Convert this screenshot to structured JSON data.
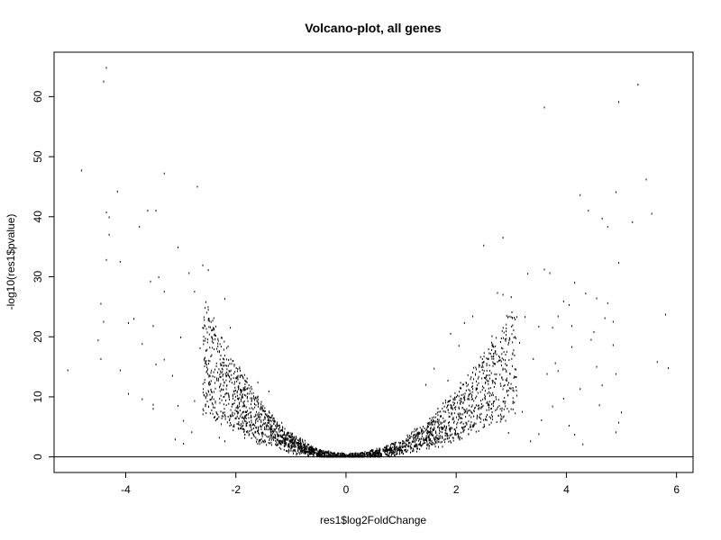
{
  "chart_data": {
    "type": "scatter",
    "title": "Volcano-plot, all genes",
    "xlabel": "res1$log2FoldChange",
    "ylabel": "-log10(res1$pvalue)",
    "xlim": [
      -5.3,
      6.3
    ],
    "ylim": [
      -2.6,
      67.4
    ],
    "xticks": [
      -4,
      -2,
      0,
      2,
      4,
      6
    ],
    "yticks": [
      0,
      10,
      20,
      30,
      40,
      50,
      60
    ],
    "hline": 0,
    "grid": false,
    "legend": "none",
    "point_color": "#000000",
    "points": [
      [
        -4.35,
        64.8
      ],
      [
        -4.4,
        62.5
      ],
      [
        -4.8,
        47.7
      ],
      [
        -3.3,
        47.2
      ],
      [
        -2.7,
        45.0
      ],
      [
        -4.15,
        44.2
      ],
      [
        -3.6,
        41.0
      ],
      [
        -3.45,
        41.0
      ],
      [
        -4.35,
        40.7
      ],
      [
        -4.3,
        39.9
      ],
      [
        -3.75,
        38.3
      ],
      [
        -4.3,
        37.0
      ],
      [
        -3.05,
        34.9
      ],
      [
        -4.35,
        32.8
      ],
      [
        -4.1,
        32.5
      ],
      [
        -2.6,
        31.9
      ],
      [
        -2.5,
        31.1
      ],
      [
        -2.85,
        30.6
      ],
      [
        -3.4,
        29.9
      ],
      [
        -3.55,
        29.2
      ],
      [
        -3.3,
        27.5
      ],
      [
        -2.75,
        27.5
      ],
      [
        -2.2,
        26.3
      ],
      [
        -4.45,
        25.5
      ],
      [
        -2.5,
        24.5
      ],
      [
        -2.4,
        23.1
      ],
      [
        -3.85,
        23.0
      ],
      [
        -3.95,
        22.3
      ],
      [
        -4.4,
        22.5
      ],
      [
        -3.5,
        21.8
      ],
      [
        -2.1,
        21.5
      ],
      [
        -2.6,
        21.5
      ],
      [
        -3.0,
        19.9
      ],
      [
        -4.5,
        19.4
      ],
      [
        -3.7,
        18.8
      ],
      [
        -2.65,
        18.1
      ],
      [
        -2.3,
        17.6
      ],
      [
        -4.45,
        16.3
      ],
      [
        -3.3,
        16.2
      ],
      [
        -3.45,
        15.4
      ],
      [
        -5.05,
        14.4
      ],
      [
        -4.1,
        14.4
      ],
      [
        -3.15,
        13.5
      ],
      [
        -2.0,
        13.1
      ],
      [
        -3.5,
        8.7
      ],
      [
        -3.5,
        8.0
      ],
      [
        -3.7,
        9.6
      ],
      [
        -3.05,
        8.5
      ],
      [
        -2.95,
        6.0
      ],
      [
        -3.1,
        2.9
      ],
      [
        -2.95,
        2.2
      ],
      [
        -2.8,
        4.1
      ],
      [
        -2.3,
        3.2
      ],
      [
        -2.2,
        2.6
      ],
      [
        -3.95,
        10.5
      ],
      [
        -2.75,
        9.3
      ],
      [
        -2.5,
        11.0
      ],
      [
        -1.6,
        12.4
      ],
      [
        -1.4,
        10.9
      ],
      [
        3.6,
        58.2
      ],
      [
        5.3,
        62.0
      ],
      [
        4.95,
        59.1
      ],
      [
        5.45,
        46.2
      ],
      [
        4.9,
        44.1
      ],
      [
        4.25,
        43.6
      ],
      [
        5.55,
        40.5
      ],
      [
        4.4,
        41.0
      ],
      [
        4.65,
        39.7
      ],
      [
        4.75,
        38.3
      ],
      [
        5.2,
        39.1
      ],
      [
        2.85,
        36.5
      ],
      [
        2.5,
        35.2
      ],
      [
        4.95,
        32.3
      ],
      [
        3.6,
        31.2
      ],
      [
        3.7,
        30.6
      ],
      [
        3.3,
        30.5
      ],
      [
        4.15,
        29.0
      ],
      [
        3.95,
        25.9
      ],
      [
        2.75,
        27.3
      ],
      [
        2.85,
        27.0
      ],
      [
        3.0,
        26.6
      ],
      [
        4.35,
        27.2
      ],
      [
        4.55,
        26.4
      ],
      [
        4.75,
        25.6
      ],
      [
        4.05,
        25.3
      ],
      [
        4.7,
        23.1
      ],
      [
        3.85,
        23.4
      ],
      [
        3.25,
        23.3
      ],
      [
        2.3,
        23.4
      ],
      [
        2.15,
        22.3
      ],
      [
        4.85,
        22.5
      ],
      [
        5.8,
        23.7
      ],
      [
        3.5,
        21.7
      ],
      [
        3.75,
        21.5
      ],
      [
        4.1,
        21.8
      ],
      [
        4.5,
        20.8
      ],
      [
        4.1,
        18.3
      ],
      [
        4.85,
        18.6
      ],
      [
        4.45,
        19.5
      ],
      [
        3.15,
        19.0
      ],
      [
        2.65,
        20.1
      ],
      [
        1.9,
        20.5
      ],
      [
        2.05,
        18.5
      ],
      [
        3.4,
        16.3
      ],
      [
        3.8,
        15.6
      ],
      [
        5.65,
        15.8
      ],
      [
        5.85,
        14.8
      ],
      [
        4.55,
        15.0
      ],
      [
        3.85,
        14.3
      ],
      [
        4.9,
        13.8
      ],
      [
        3.65,
        13.8
      ],
      [
        4.65,
        11.9
      ],
      [
        4.25,
        11.3
      ],
      [
        3.75,
        8.4
      ],
      [
        3.95,
        9.7
      ],
      [
        4.6,
        8.6
      ],
      [
        5.0,
        7.4
      ],
      [
        3.55,
        6.1
      ],
      [
        4.05,
        5.2
      ],
      [
        4.95,
        5.7
      ],
      [
        4.9,
        4.1
      ],
      [
        3.5,
        3.8
      ],
      [
        4.3,
        2.1
      ],
      [
        4.15,
        3.7
      ],
      [
        3.35,
        2.6
      ],
      [
        2.95,
        4.0
      ],
      [
        2.5,
        11.5
      ],
      [
        2.35,
        13.8
      ],
      [
        2.7,
        15.5
      ],
      [
        2.9,
        12.8
      ],
      [
        3.1,
        10.2
      ],
      [
        1.6,
        14.7
      ],
      [
        1.45,
        12.0
      ],
      [
        1.85,
        12.7
      ],
      [
        2.15,
        9.8
      ],
      [
        2.6,
        8.6
      ],
      [
        2.45,
        6.3
      ],
      [
        3.2,
        7.5
      ]
    ]
  }
}
